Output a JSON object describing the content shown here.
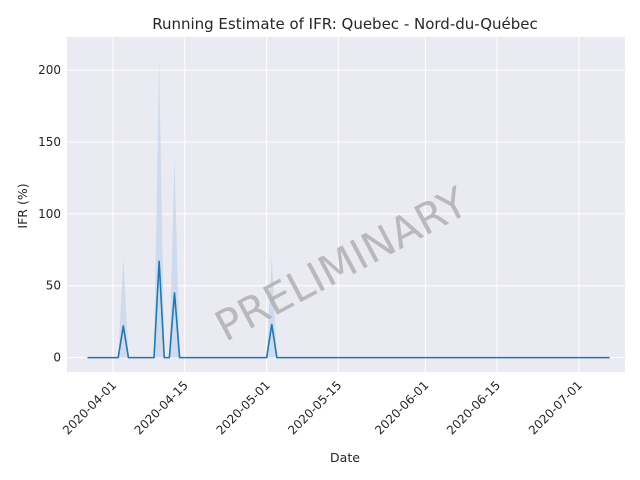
{
  "chart_data": {
    "type": "line",
    "title": "Running Estimate of IFR: Quebec - Nord-du-Québec",
    "xlabel": "Date",
    "ylabel": "IFR (%)",
    "watermark": "PRELIMINARY",
    "grid": true,
    "background_color": "#eaeaf2",
    "line_color": "#1f77b4",
    "band_color": "#c6d6ea",
    "x_ticks": [
      "2020-04-01",
      "2020-04-15",
      "2020-05-01",
      "2020-05-15",
      "2020-06-01",
      "2020-06-15",
      "2020-07-01"
    ],
    "y_ticks": [
      0,
      50,
      100,
      150,
      200
    ],
    "xlim": [
      "2020-03-23",
      "2020-07-10"
    ],
    "ylim": [
      -10,
      223
    ],
    "series": [
      {
        "points": [
          {
            "date": "2020-03-27",
            "value": 0,
            "upper": 0
          },
          {
            "date": "2020-03-28",
            "value": 0,
            "upper": 0
          },
          {
            "date": "2020-03-29",
            "value": 0,
            "upper": 0
          },
          {
            "date": "2020-03-30",
            "value": 0,
            "upper": 0
          },
          {
            "date": "2020-03-31",
            "value": 0,
            "upper": 0
          },
          {
            "date": "2020-04-01",
            "value": 0,
            "upper": 0
          },
          {
            "date": "2020-04-02",
            "value": 0,
            "upper": 0
          },
          {
            "date": "2020-04-03",
            "value": 22,
            "upper": 70
          },
          {
            "date": "2020-04-04",
            "value": 0,
            "upper": 0
          },
          {
            "date": "2020-04-05",
            "value": 0,
            "upper": 0
          },
          {
            "date": "2020-04-06",
            "value": 0,
            "upper": 0
          },
          {
            "date": "2020-04-07",
            "value": 0,
            "upper": 0
          },
          {
            "date": "2020-04-08",
            "value": 0,
            "upper": 0
          },
          {
            "date": "2020-04-09",
            "value": 0,
            "upper": 0
          },
          {
            "date": "2020-04-10",
            "value": 67,
            "upper": 208
          },
          {
            "date": "2020-04-11",
            "value": 0,
            "upper": 0
          },
          {
            "date": "2020-04-12",
            "value": 0,
            "upper": 0
          },
          {
            "date": "2020-04-13",
            "value": 45,
            "upper": 140
          },
          {
            "date": "2020-04-14",
            "value": 0,
            "upper": 0
          },
          {
            "date": "2020-05-01",
            "value": 0,
            "upper": 0
          },
          {
            "date": "2020-05-02",
            "value": 23,
            "upper": 70
          },
          {
            "date": "2020-05-03",
            "value": 0,
            "upper": 0
          },
          {
            "date": "2020-07-07",
            "value": 0,
            "upper": 0
          }
        ]
      }
    ]
  }
}
